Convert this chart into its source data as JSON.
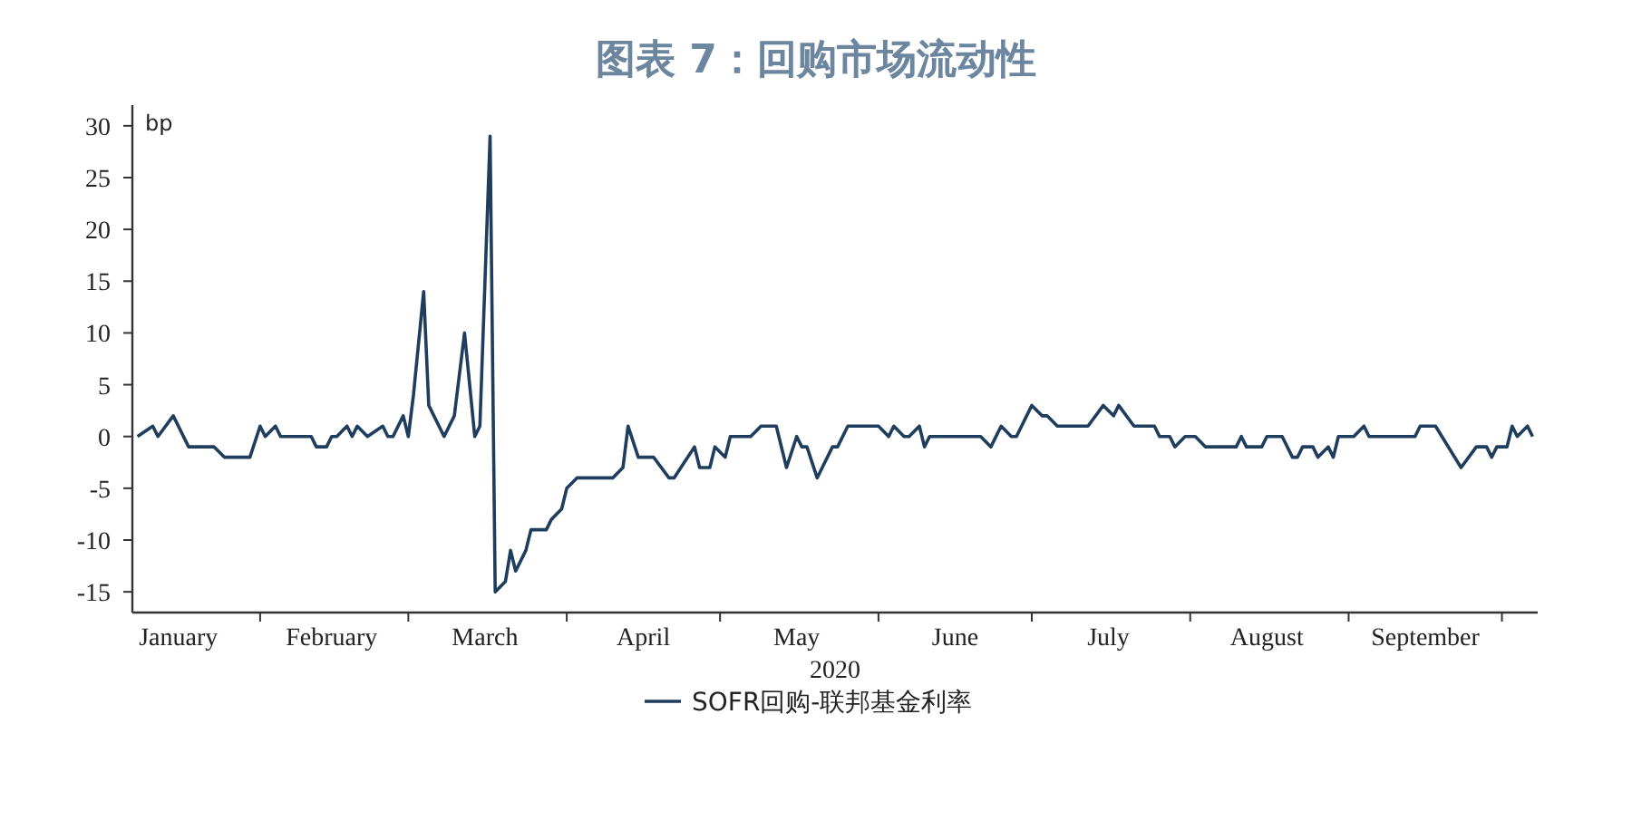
{
  "chart_data": {
    "type": "line",
    "title": "图表 7：回购市场流动性",
    "ylabel": "bp",
    "xlabel": "2020",
    "x": [
      "2020-01-08",
      "2020-01-11",
      "2020-01-12",
      "2020-01-15",
      "2020-01-16",
      "2020-01-18",
      "2020-01-23",
      "2020-01-25",
      "2020-01-30",
      "2020-02-01",
      "2020-02-02",
      "2020-02-04",
      "2020-02-05",
      "2020-02-11",
      "2020-02-12",
      "2020-02-14",
      "2020-02-15",
      "2020-02-16",
      "2020-02-18",
      "2020-02-19",
      "2020-02-20",
      "2020-02-22",
      "2020-02-25",
      "2020-02-26",
      "2020-02-27",
      "2020-02-29",
      "2020-03-01",
      "2020-03-02",
      "2020-03-04",
      "2020-03-05",
      "2020-03-07",
      "2020-03-08",
      "2020-03-10",
      "2020-03-12",
      "2020-03-14",
      "2020-03-15",
      "2020-03-17",
      "2020-03-18",
      "2020-03-20",
      "2020-03-21",
      "2020-03-22",
      "2020-03-24",
      "2020-03-25",
      "2020-03-28",
      "2020-03-29",
      "2020-03-31",
      "2020-04-01",
      "2020-04-03",
      "2020-04-10",
      "2020-04-12",
      "2020-04-13",
      "2020-04-15",
      "2020-04-18",
      "2020-04-21",
      "2020-04-22",
      "2020-04-26",
      "2020-04-27",
      "2020-04-29",
      "2020-04-30",
      "2020-05-02",
      "2020-05-03",
      "2020-05-07",
      "2020-05-09",
      "2020-05-12",
      "2020-05-14",
      "2020-05-16",
      "2020-05-17",
      "2020-05-18",
      "2020-05-20",
      "2020-05-21",
      "2020-05-23",
      "2020-05-24",
      "2020-05-26",
      "2020-06-01",
      "2020-06-03",
      "2020-06-04",
      "2020-06-06",
      "2020-06-07",
      "2020-06-09",
      "2020-06-10",
      "2020-06-11",
      "2020-06-21",
      "2020-06-23",
      "2020-06-25",
      "2020-06-27",
      "2020-06-28",
      "2020-07-01",
      "2020-07-03",
      "2020-07-04",
      "2020-07-06",
      "2020-07-12",
      "2020-07-15",
      "2020-07-17",
      "2020-07-18",
      "2020-07-21",
      "2020-07-25",
      "2020-07-26",
      "2020-07-28",
      "2020-07-29",
      "2020-07-31",
      "2020-08-02",
      "2020-08-04",
      "2020-08-10",
      "2020-08-11",
      "2020-08-12",
      "2020-08-15",
      "2020-08-16",
      "2020-08-19",
      "2020-08-21",
      "2020-08-22",
      "2020-08-23",
      "2020-08-25",
      "2020-08-26",
      "2020-08-28",
      "2020-08-29",
      "2020-08-30",
      "2020-09-02",
      "2020-09-04",
      "2020-09-05",
      "2020-09-14",
      "2020-09-15",
      "2020-09-18",
      "2020-09-23",
      "2020-09-26",
      "2020-09-28",
      "2020-09-29",
      "2020-09-30",
      "2020-10-02",
      "2020-10-03",
      "2020-10-04",
      "2020-10-06",
      "2020-10-07"
    ],
    "series": [
      {
        "name": "SOFR回购-联邦基金利率",
        "color": "#1f3d5c",
        "values": [
          0,
          1,
          0,
          2,
          1,
          -1,
          -1,
          -2,
          -2,
          1,
          0,
          1,
          0,
          0,
          -1,
          -1,
          0,
          0,
          1,
          0,
          1,
          0,
          1,
          0,
          0,
          2,
          0,
          4,
          14,
          3,
          1,
          0,
          2,
          10,
          0,
          1,
          29,
          -15,
          -14,
          -11,
          -13,
          -11,
          -9,
          -9,
          -8,
          -7,
          -5,
          -4,
          -4,
          -3,
          1,
          -2,
          -2,
          -4,
          -4,
          -1,
          -3,
          -3,
          -1,
          -2,
          0,
          0,
          1,
          1,
          -3,
          0,
          -1,
          -1,
          -4,
          -3,
          -1,
          -1,
          1,
          1,
          0,
          1,
          0,
          0,
          1,
          -1,
          0,
          0,
          -1,
          1,
          0,
          0,
          3,
          2,
          2,
          1,
          1,
          3,
          2,
          3,
          1,
          1,
          0,
          0,
          -1,
          0,
          0,
          -1,
          -1,
          0,
          -1,
          -1,
          0,
          0,
          -2,
          -2,
          -1,
          -1,
          -2,
          -1,
          -2,
          0,
          0,
          1,
          0,
          0,
          1,
          1,
          -3,
          -1,
          -1,
          -2,
          -1,
          -1,
          1,
          0,
          1,
          0
        ]
      }
    ],
    "xlim": [
      "2020-01-07",
      "2020-10-08"
    ],
    "xticks": [
      {
        "value": "2020-01-16",
        "label": "January"
      },
      {
        "value": "2020-02-01",
        "label": null
      },
      {
        "value": "2020-02-15",
        "label": "February"
      },
      {
        "value": "2020-03-01",
        "label": null
      },
      {
        "value": "2020-03-16",
        "label": "March"
      },
      {
        "value": "2020-04-01",
        "label": null
      },
      {
        "value": "2020-04-16",
        "label": "April"
      },
      {
        "value": "2020-05-01",
        "label": null
      },
      {
        "value": "2020-05-16",
        "label": "May"
      },
      {
        "value": "2020-06-01",
        "label": null
      },
      {
        "value": "2020-06-16",
        "label": "June"
      },
      {
        "value": "2020-07-01",
        "label": null
      },
      {
        "value": "2020-07-16",
        "label": "July"
      },
      {
        "value": "2020-08-01",
        "label": null
      },
      {
        "value": "2020-08-16",
        "label": "August"
      },
      {
        "value": "2020-09-01",
        "label": null
      },
      {
        "value": "2020-09-16",
        "label": "September"
      },
      {
        "value": "2020-10-01",
        "label": null
      }
    ],
    "ylim": [
      -17,
      32
    ],
    "yticks": [
      -15,
      -10,
      -5,
      0,
      5,
      10,
      15,
      20,
      25,
      30
    ],
    "grid": false,
    "legend": "bottom",
    "line_style": "solid",
    "marker": "none"
  }
}
